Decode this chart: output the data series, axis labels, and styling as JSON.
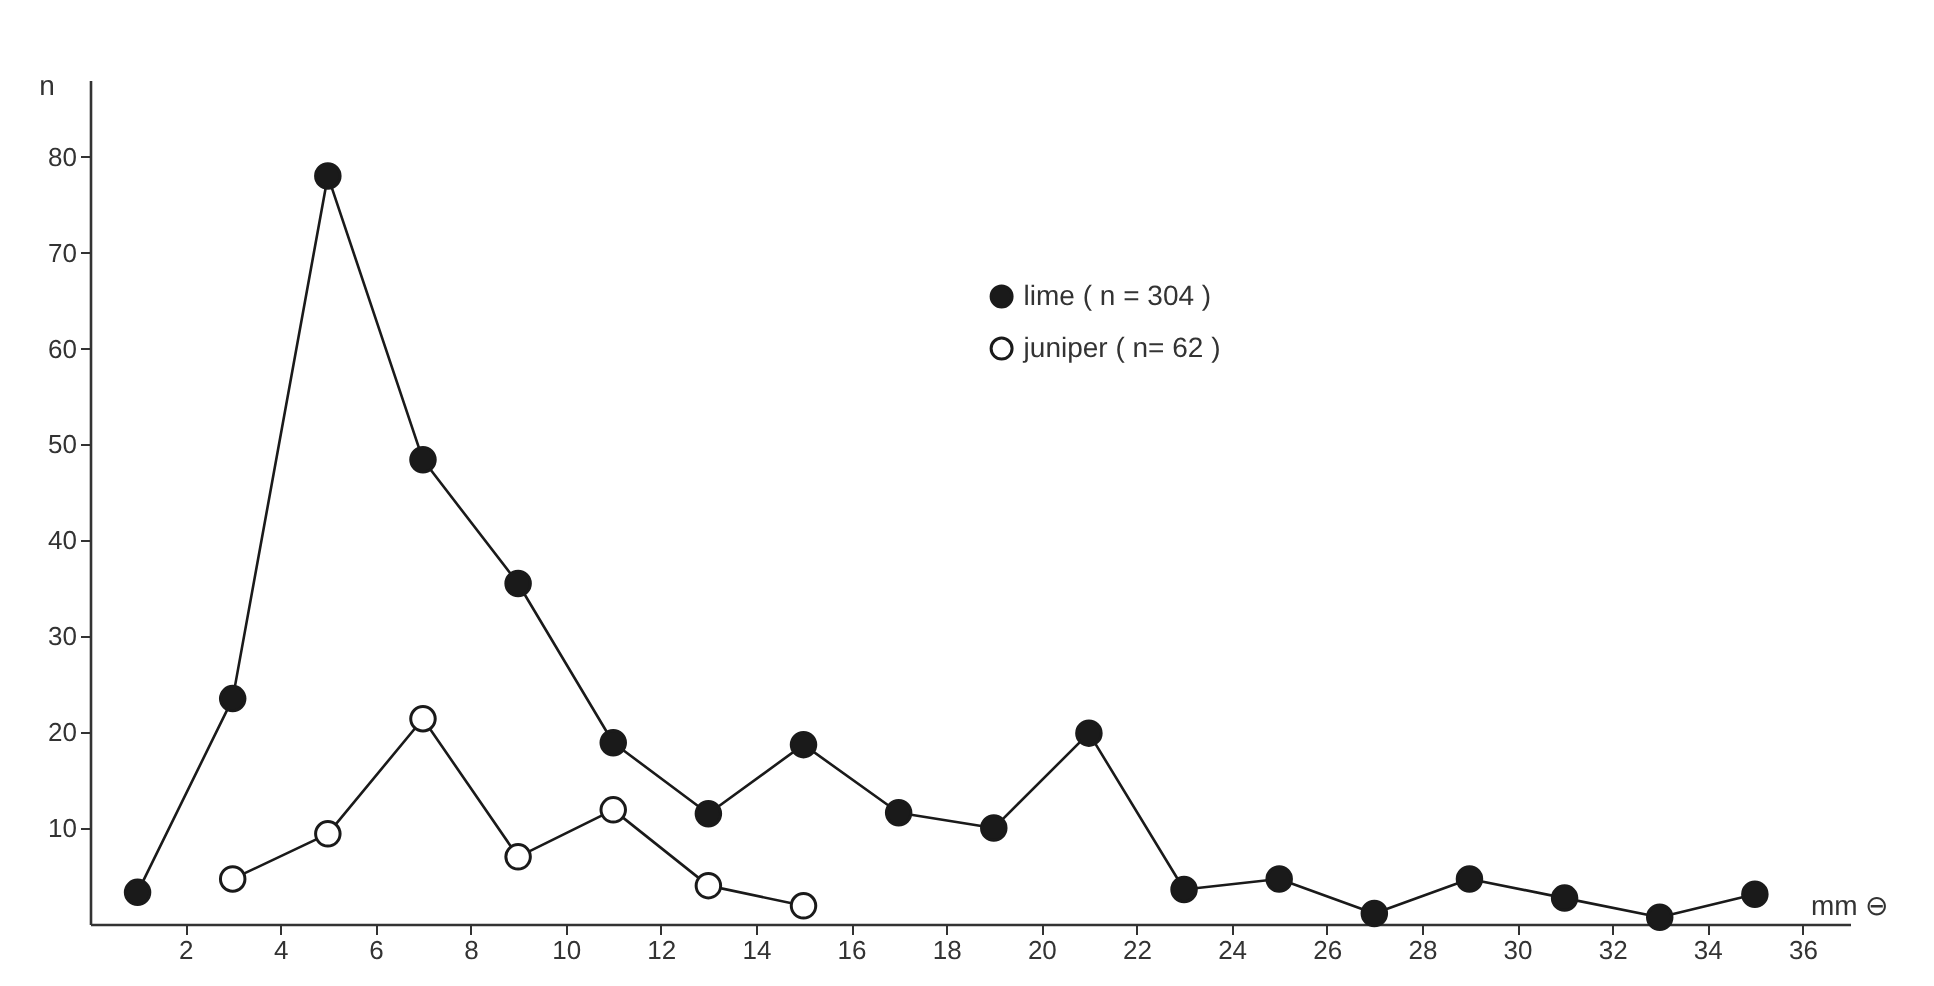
{
  "chart_data": {
    "type": "line",
    "xlabel": "mm ⊖",
    "ylabel": "n",
    "xlim": [
      0,
      37
    ],
    "xticks": [
      2,
      4,
      6,
      8,
      10,
      12,
      14,
      16,
      18,
      20,
      22,
      24,
      26,
      28,
      30,
      32,
      34,
      36
    ],
    "ylim": [
      0,
      88
    ],
    "yticks": [
      10,
      20,
      30,
      40,
      50,
      60,
      70,
      80
    ],
    "grid": false,
    "legend": "top",
    "marker": "circle",
    "line_style": "solid",
    "series": [
      {
        "name": "lime ( n = 304 )",
        "color": "#1a1a1a",
        "x": [
          1,
          3,
          5,
          7,
          9,
          11,
          13,
          15,
          17,
          19,
          21,
          23,
          25,
          27,
          29,
          31,
          33,
          35
        ],
        "values": [
          3.3,
          23.5,
          78,
          48.4,
          35.5,
          18.9,
          11.5,
          18.7,
          11.6,
          10,
          19.9,
          3.6,
          4.7,
          1.1,
          4.7,
          2.7,
          0.7,
          3.1
        ]
      },
      {
        "name": "juniper ( n= 62 )",
        "color": "#ffffff",
        "x": [
          3,
          5,
          7,
          9,
          11,
          13,
          15
        ],
        "values": [
          4.7,
          9.4,
          21.4,
          7.0,
          11.9,
          4.0,
          1.9
        ]
      }
    ]
  }
}
